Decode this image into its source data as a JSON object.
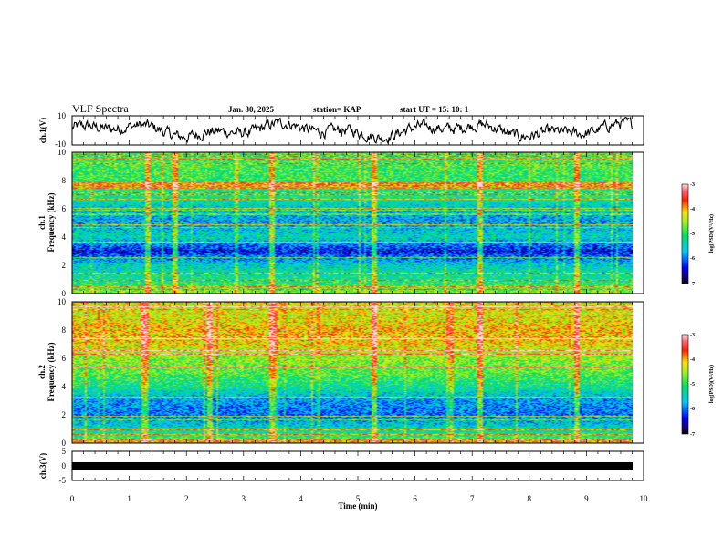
{
  "header": {
    "title": "VLF Spectra",
    "date": "Jan. 30, 2025",
    "station": "station= KAP",
    "start_time": "start  UT =  15: 10: 1"
  },
  "chart_data": [
    {
      "type": "line",
      "panel": "ch1-waveform",
      "ylabel": "ch.1(V)",
      "ylim": [
        -10,
        10
      ],
      "yticks": [
        "10",
        "-10"
      ],
      "xlim": [
        0,
        10
      ]
    },
    {
      "type": "heatmap",
      "panel": "ch1-spectrogram",
      "ylabel_line1": "ch.1",
      "ylabel_line2": "Frequency (kHz)",
      "ylim": [
        0,
        10
      ],
      "yticks": [
        "0",
        "2",
        "4",
        "6",
        "8",
        "10"
      ],
      "xlim": [
        0,
        10
      ],
      "base_level_by_khz": [
        [
          0,
          -4.6
        ],
        [
          1,
          -5.2
        ],
        [
          2,
          -5.5
        ],
        [
          3,
          -6.4
        ],
        [
          4,
          -5.4
        ],
        [
          5,
          -5.8
        ],
        [
          6,
          -5.6
        ],
        [
          7,
          -5.1
        ],
        [
          8,
          -5.0
        ],
        [
          9,
          -4.9
        ],
        [
          10,
          -4.9
        ]
      ],
      "vertical_bursts_min": [
        1.3,
        1.8,
        3.5,
        5.3,
        7.15,
        8.85
      ],
      "colorbar": {
        "label": "log(PSD)(V²/Hz)",
        "ticks": [
          "-3",
          "-4",
          "-5",
          "-6",
          "-7"
        ],
        "range": [
          -7,
          -3
        ]
      }
    },
    {
      "type": "heatmap",
      "panel": "ch2-spectrogram",
      "ylabel_line1": "ch.2",
      "ylabel_line2": "Frequency (kHz)",
      "ylim": [
        0,
        10
      ],
      "yticks": [
        "0",
        "2",
        "4",
        "6",
        "8",
        "10"
      ],
      "xlim": [
        0,
        10
      ],
      "base_level_by_khz": [
        [
          0,
          -4.7
        ],
        [
          1,
          -5.4
        ],
        [
          2,
          -6.0
        ],
        [
          3,
          -5.8
        ],
        [
          4,
          -5.2
        ],
        [
          5,
          -4.8
        ],
        [
          6,
          -4.6
        ],
        [
          7,
          -4.2
        ],
        [
          8,
          -4.1
        ],
        [
          9,
          -4.3
        ],
        [
          10,
          -4.3
        ]
      ],
      "vertical_bursts_min": [
        1.25,
        2.4,
        3.5,
        5.3,
        7.15,
        8.85
      ],
      "colorbar": {
        "label": "log(PSD)(V²/Hz)",
        "ticks": [
          "-3",
          "-4",
          "-5",
          "-6",
          "-7"
        ],
        "range": [
          -7,
          -3
        ]
      }
    },
    {
      "type": "line",
      "panel": "ch3-waveform",
      "ylabel": "ch.3(V)",
      "ylim": [
        -5,
        5
      ],
      "yticks": [
        "5",
        "0",
        "-5"
      ],
      "xlim": [
        0,
        10
      ],
      "xlabel": "Time (min)",
      "xticks": [
        "0",
        "1",
        "2",
        "3",
        "4",
        "5",
        "6",
        "7",
        "8",
        "9",
        "10"
      ],
      "data_extent_min": 9.8
    }
  ]
}
